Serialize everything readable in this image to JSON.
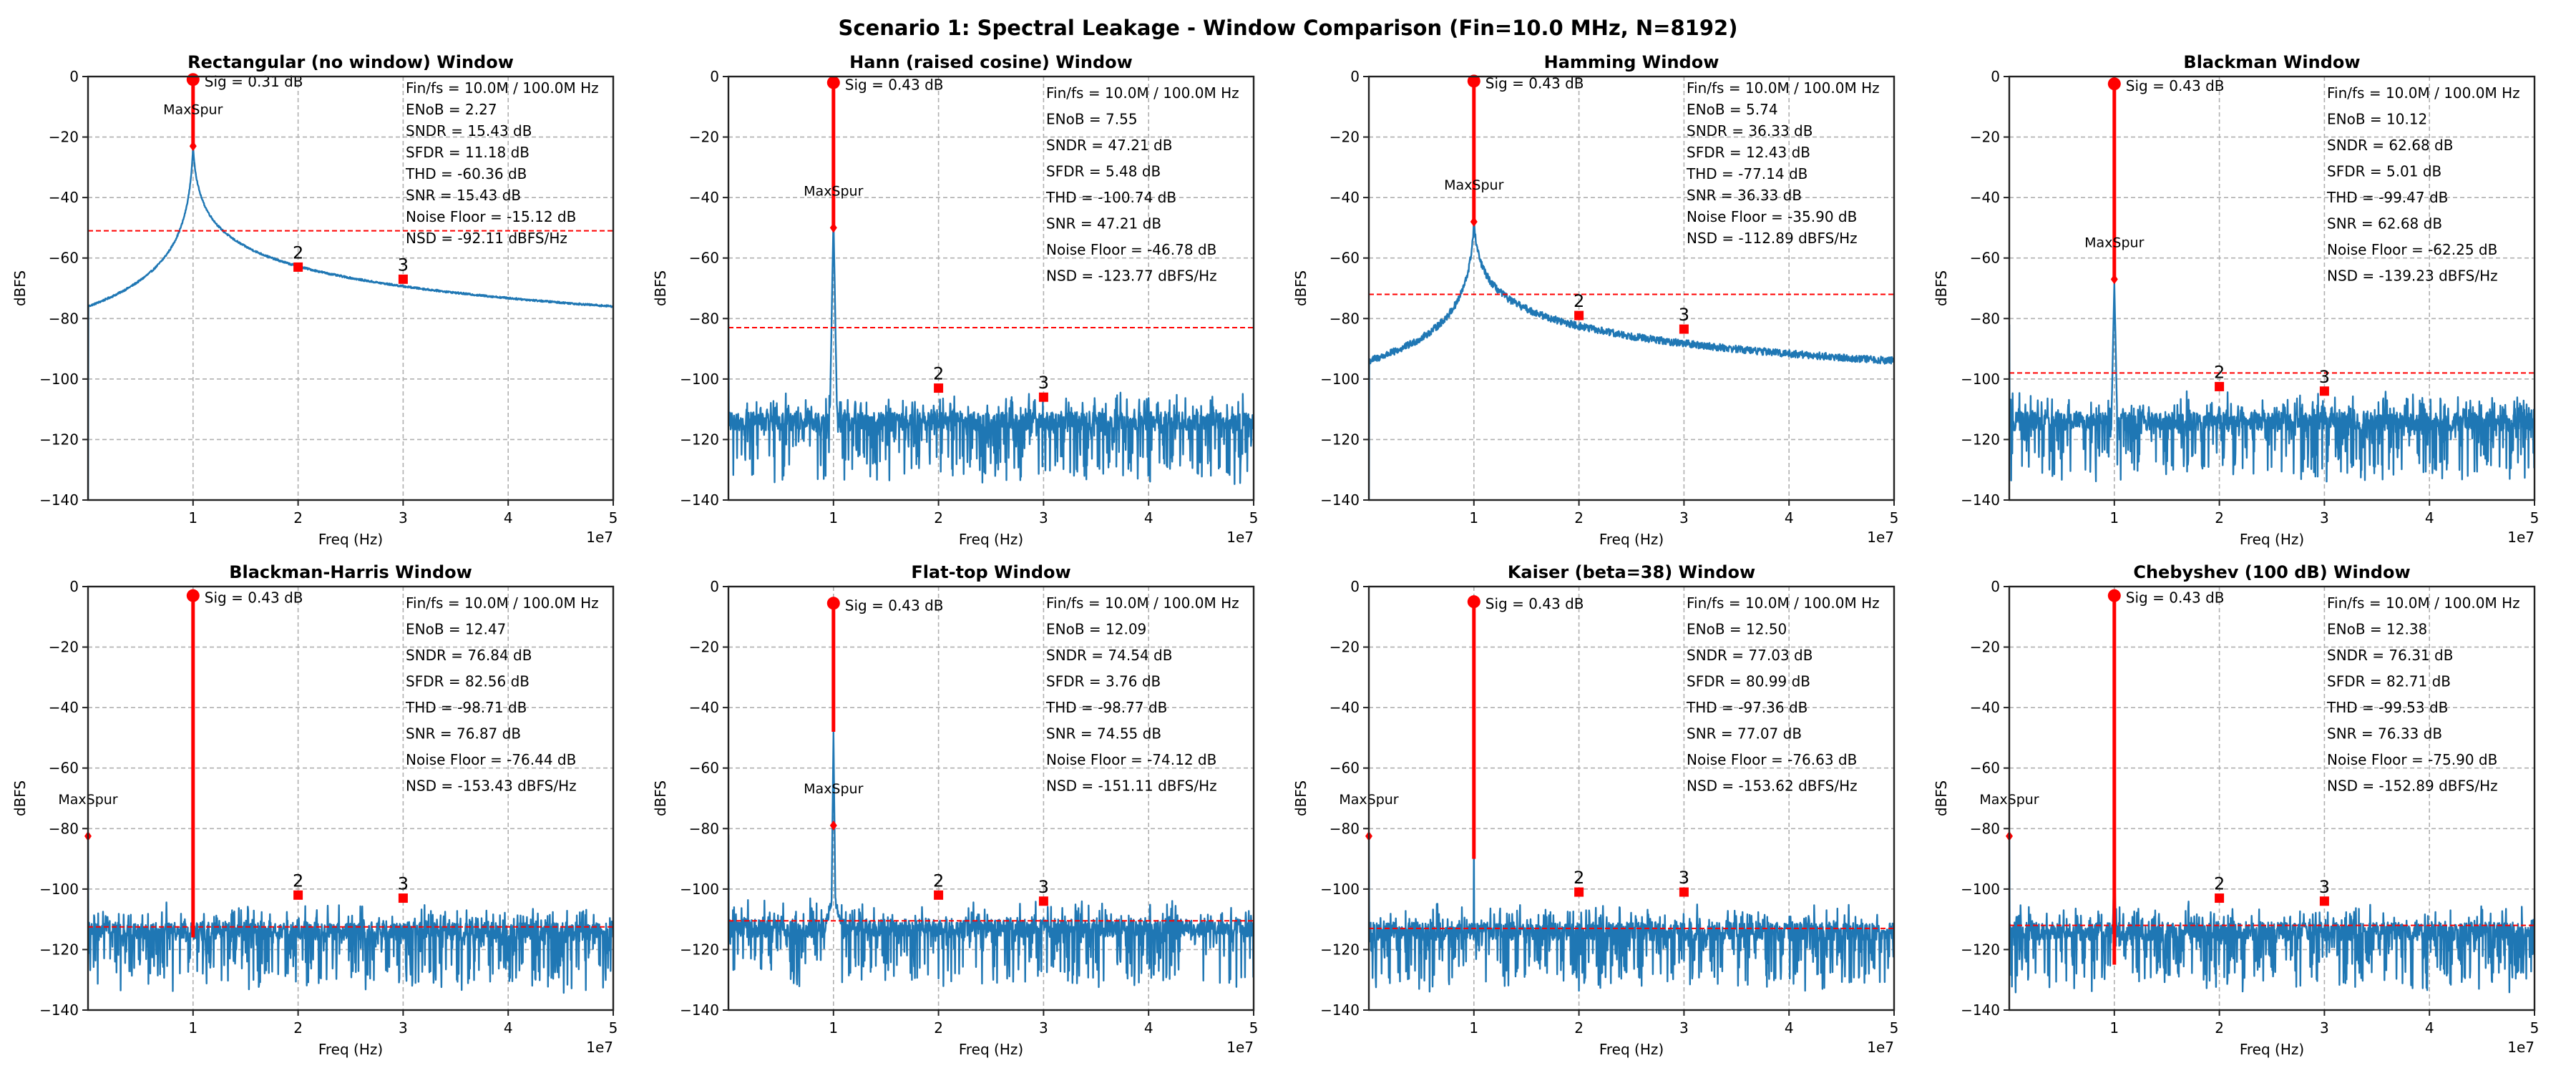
{
  "figure": {
    "suptitle": "Scenario 1: Spectral Leakage - Window Comparison (Fin=10.0 MHz, N=8192)"
  },
  "chart_data": [
    {
      "type": "line",
      "title": "Rectangular (no window) Window",
      "xlabel": "Freq (Hz)",
      "ylabel": "dBFS",
      "x_offset_label": "1e7",
      "xlim": [
        0,
        50000000
      ],
      "ylim": [
        -140,
        0
      ],
      "xticks": [
        1,
        2,
        3,
        4,
        5
      ],
      "yticks": [
        0,
        -20,
        -40,
        -60,
        -80,
        -100,
        -120,
        -140
      ],
      "grid": true,
      "spectrum": {
        "shape": "leakage",
        "floor_db": -76,
        "peak_db": -23,
        "noise_db": 0.3,
        "dc_drop": true
      },
      "signal": {
        "freq_hz": 10000000,
        "level_db": -1,
        "label": "Sig = 0.31 dB"
      },
      "max_spur": {
        "freq_hz": 10000000,
        "level_db": -23,
        "label": "MaxSpur"
      },
      "harmonics": [
        {
          "label": "2",
          "freq_hz": 20000000,
          "level_db": -63
        },
        {
          "label": "3",
          "freq_hz": 30000000,
          "level_db": -67
        }
      ],
      "noise_floor_line_db": -51,
      "metrics": [
        "Fin/fs = 10.0M / 100.0M Hz",
        "ENoB = 2.27",
        "SNDR = 15.43 dB",
        "SFDR = 11.18 dB",
        "THD = -60.36 dB",
        "SNR = 15.43 dB",
        "Noise Floor = -15.12 dB",
        "NSD = -92.11 dBFS/Hz"
      ],
      "metrics_compact": true
    },
    {
      "type": "line",
      "title": "Hann (raised cosine) Window",
      "xlabel": "Freq (Hz)",
      "ylabel": "dBFS",
      "x_offset_label": "1e7",
      "xlim": [
        0,
        50000000
      ],
      "ylim": [
        -140,
        0
      ],
      "xticks": [
        1,
        2,
        3,
        4,
        5
      ],
      "yticks": [
        0,
        -20,
        -40,
        -60,
        -80,
        -100,
        -120,
        -140
      ],
      "grid": true,
      "spectrum": {
        "shape": "noise",
        "floor_db": -114,
        "peak_db": -46,
        "skirt": 1.0
      },
      "signal": {
        "freq_hz": 10000000,
        "level_db": -2,
        "label": "Sig = 0.43 dB"
      },
      "max_spur": {
        "freq_hz": 10000000,
        "level_db": -50,
        "label": "MaxSpur"
      },
      "harmonics": [
        {
          "label": "2",
          "freq_hz": 20000000,
          "level_db": -103
        },
        {
          "label": "3",
          "freq_hz": 30000000,
          "level_db": -106
        }
      ],
      "noise_floor_line_db": -83,
      "metrics": [
        "Fin/fs = 10.0M / 100.0M Hz",
        "ENoB = 7.55",
        "SNDR = 47.21 dB",
        "SFDR = 5.48 dB",
        "THD = -100.74 dB",
        "SNR = 47.21 dB",
        "Noise Floor = -46.78 dB",
        "NSD = -123.77 dBFS/Hz"
      ],
      "metrics_compact": false
    },
    {
      "type": "line",
      "title": "Hamming Window",
      "xlabel": "Freq (Hz)",
      "ylabel": "dBFS",
      "x_offset_label": "1e7",
      "xlim": [
        0,
        50000000
      ],
      "ylim": [
        -140,
        0
      ],
      "xticks": [
        1,
        2,
        3,
        4,
        5
      ],
      "yticks": [
        0,
        -20,
        -40,
        -60,
        -80,
        -100,
        -120,
        -140
      ],
      "grid": true,
      "spectrum": {
        "shape": "leakage",
        "floor_db": -94,
        "peak_db": -48,
        "noise_db": 1.2,
        "dc_drop": true
      },
      "signal": {
        "freq_hz": 10000000,
        "level_db": -1.5,
        "label": "Sig = 0.43 dB"
      },
      "max_spur": {
        "freq_hz": 10000000,
        "level_db": -48,
        "label": "MaxSpur"
      },
      "harmonics": [
        {
          "label": "2",
          "freq_hz": 20000000,
          "level_db": -79
        },
        {
          "label": "3",
          "freq_hz": 30000000,
          "level_db": -83.5
        }
      ],
      "noise_floor_line_db": -72,
      "metrics": [
        "Fin/fs = 10.0M / 100.0M Hz",
        "ENoB = 5.74",
        "SNDR = 36.33 dB",
        "SFDR = 12.43 dB",
        "THD = -77.14 dB",
        "SNR = 36.33 dB",
        "Noise Floor = -35.90 dB",
        "NSD = -112.89 dBFS/Hz"
      ],
      "metrics_compact": true
    },
    {
      "type": "line",
      "title": "Blackman Window",
      "xlabel": "Freq (Hz)",
      "ylabel": "dBFS",
      "x_offset_label": "1e7",
      "xlim": [
        0,
        50000000
      ],
      "ylim": [
        -140,
        0
      ],
      "xticks": [
        1,
        2,
        3,
        4,
        5
      ],
      "yticks": [
        0,
        -20,
        -40,
        -60,
        -80,
        -100,
        -120,
        -140
      ],
      "grid": true,
      "spectrum": {
        "shape": "noise",
        "floor_db": -114,
        "peak_db": -68,
        "skirt": 0.8
      },
      "signal": {
        "freq_hz": 10000000,
        "level_db": -2.4,
        "label": "Sig = 0.43 dB"
      },
      "max_spur": {
        "freq_hz": 10000000,
        "level_db": -67,
        "label": "MaxSpur"
      },
      "harmonics": [
        {
          "label": "2",
          "freq_hz": 20000000,
          "level_db": -102.5
        },
        {
          "label": "3",
          "freq_hz": 30000000,
          "level_db": -104
        }
      ],
      "noise_floor_line_db": -98,
      "metrics": [
        "Fin/fs = 10.0M / 100.0M Hz",
        "ENoB = 10.12",
        "SNDR = 62.68 dB",
        "SFDR = 5.01 dB",
        "THD = -99.47 dB",
        "SNR = 62.68 dB",
        "Noise Floor = -62.25 dB",
        "NSD = -139.23 dBFS/Hz"
      ],
      "metrics_compact": false
    },
    {
      "type": "line",
      "title": "Blackman-Harris Window",
      "xlabel": "Freq (Hz)",
      "ylabel": "dBFS",
      "x_offset_label": "1e7",
      "xlim": [
        0,
        50000000
      ],
      "ylim": [
        -140,
        0
      ],
      "xticks": [
        1,
        2,
        3,
        4,
        5
      ],
      "yticks": [
        0,
        -20,
        -40,
        -60,
        -80,
        -100,
        -120,
        -140
      ],
      "grid": true,
      "spectrum": {
        "shape": "noise",
        "floor_db": -114,
        "peak_db": -101,
        "skirt": 0.2
      },
      "signal": {
        "freq_hz": 10000000,
        "level_db": -3,
        "label": "Sig = 0.43 dB",
        "stem_bottom_db": -116
      },
      "max_spur": {
        "freq_hz": 0,
        "level_db": -82.5,
        "label": "MaxSpur"
      },
      "harmonics": [
        {
          "label": "2",
          "freq_hz": 20000000,
          "level_db": -102
        },
        {
          "label": "3",
          "freq_hz": 30000000,
          "level_db": -103
        }
      ],
      "noise_floor_line_db": -112.5,
      "metrics": [
        "Fin/fs = 10.0M / 100.0M Hz",
        "ENoB = 12.47",
        "SNDR = 76.84 dB",
        "SFDR = 82.56 dB",
        "THD = -98.71 dB",
        "SNR = 76.87 dB",
        "Noise Floor = -76.44 dB",
        "NSD = -153.43 dBFS/Hz"
      ],
      "metrics_compact": false
    },
    {
      "type": "line",
      "title": "Flat-top Window",
      "xlabel": "Freq (Hz)",
      "ylabel": "dBFS",
      "x_offset_label": "1e7",
      "xlim": [
        0,
        50000000
      ],
      "ylim": [
        -140,
        0
      ],
      "xticks": [
        1,
        2,
        3,
        4,
        5
      ],
      "yticks": [
        0,
        -20,
        -40,
        -60,
        -80,
        -100,
        -120,
        -140
      ],
      "grid": true,
      "spectrum": {
        "shape": "noise",
        "floor_db": -113,
        "peak_db": -48,
        "skirt": 0.6,
        "bump_db": -101
      },
      "signal": {
        "freq_hz": 10000000,
        "level_db": -5.5,
        "label": "Sig = 0.43 dB",
        "stem_bottom_db": -48
      },
      "max_spur": {
        "freq_hz": 10000000,
        "level_db": -79,
        "label": "MaxSpur"
      },
      "harmonics": [
        {
          "label": "2",
          "freq_hz": 20000000,
          "level_db": -102
        },
        {
          "label": "3",
          "freq_hz": 30000000,
          "level_db": -104
        }
      ],
      "noise_floor_line_db": -110.5,
      "metrics": [
        "Fin/fs = 10.0M / 100.0M Hz",
        "ENoB = 12.09",
        "SNDR = 74.54 dB",
        "SFDR = 3.76 dB",
        "THD = -98.77 dB",
        "SNR = 74.55 dB",
        "Noise Floor = -74.12 dB",
        "NSD = -151.11 dBFS/Hz"
      ],
      "metrics_compact": false
    },
    {
      "type": "line",
      "title": "Kaiser (beta=38) Window",
      "xlabel": "Freq (Hz)",
      "ylabel": "dBFS",
      "x_offset_label": "1e7",
      "xlim": [
        0,
        50000000
      ],
      "ylim": [
        -140,
        0
      ],
      "xticks": [
        1,
        2,
        3,
        4,
        5
      ],
      "yticks": [
        0,
        -20,
        -40,
        -60,
        -80,
        -100,
        -120,
        -140
      ],
      "grid": true,
      "spectrum": {
        "shape": "noise",
        "floor_db": -114,
        "peak_db": -81,
        "skirt": 0.1
      },
      "signal": {
        "freq_hz": 10000000,
        "level_db": -5,
        "label": "Sig = 0.43 dB",
        "stem_bottom_db": -90
      },
      "max_spur": {
        "freq_hz": 0,
        "level_db": -82.5,
        "label": "MaxSpur"
      },
      "harmonics": [
        {
          "label": "2",
          "freq_hz": 20000000,
          "level_db": -101
        },
        {
          "label": "3",
          "freq_hz": 30000000,
          "level_db": -101
        }
      ],
      "noise_floor_line_db": -113,
      "metrics": [
        "Fin/fs = 10.0M / 100.0M Hz",
        "ENoB = 12.50",
        "SNDR = 77.03 dB",
        "SFDR = 80.99 dB",
        "THD = -97.36 dB",
        "SNR = 77.07 dB",
        "Noise Floor = -76.63 dB",
        "NSD = -153.62 dBFS/Hz"
      ],
      "metrics_compact": false
    },
    {
      "type": "line",
      "title": "Chebyshev (100 dB) Window",
      "xlabel": "Freq (Hz)",
      "ylabel": "dBFS",
      "x_offset_label": "1e7",
      "xlim": [
        0,
        50000000
      ],
      "ylim": [
        -140,
        0
      ],
      "xticks": [
        1,
        2,
        3,
        4,
        5
      ],
      "yticks": [
        0,
        -20,
        -40,
        -60,
        -80,
        -100,
        -120,
        -140
      ],
      "grid": true,
      "spectrum": {
        "shape": "noise",
        "floor_db": -114,
        "peak_db": -88,
        "skirt": 0.4
      },
      "signal": {
        "freq_hz": 10000000,
        "level_db": -3,
        "label": "Sig = 0.43 dB",
        "stem_bottom_db": -125
      },
      "max_spur": {
        "freq_hz": 0,
        "level_db": -82.5,
        "label": "MaxSpur"
      },
      "harmonics": [
        {
          "label": "2",
          "freq_hz": 20000000,
          "level_db": -103
        },
        {
          "label": "3",
          "freq_hz": 30000000,
          "level_db": -104
        }
      ],
      "noise_floor_line_db": -112,
      "metrics": [
        "Fin/fs = 10.0M / 100.0M Hz",
        "ENoB = 12.38",
        "SNDR = 76.31 dB",
        "SFDR = 82.71 dB",
        "THD = -99.53 dB",
        "SNR = 76.33 dB",
        "Noise Floor = -75.90 dB",
        "NSD = -152.89 dBFS/Hz"
      ],
      "metrics_compact": false
    }
  ],
  "colors": {
    "spectrum": "#1f77b4",
    "marker": "#ff0000",
    "grid": "#b0b0b0",
    "axis": "#222222"
  }
}
